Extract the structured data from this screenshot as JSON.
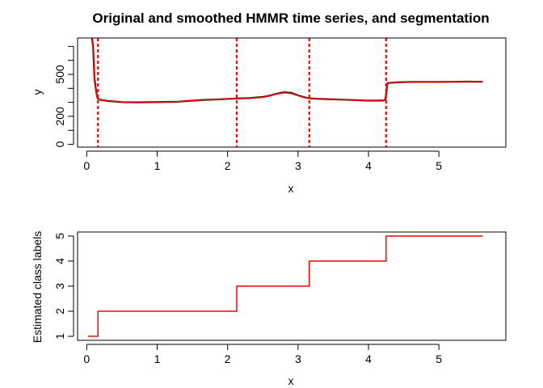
{
  "colors": {
    "original": "#000000",
    "smoothed": "#ff0000",
    "segment_lines": "#ff0000",
    "labels_line": "#ff0000"
  },
  "chart_data": [
    {
      "type": "line",
      "title": "Original and smoothed HMMR time series, and segmentation",
      "xlabel": "x",
      "ylabel": "y",
      "xlim": [
        -0.13,
        5.95
      ],
      "ylim": [
        -20,
        760
      ],
      "x_ticks": [
        0,
        1,
        2,
        3,
        4,
        5
      ],
      "y_ticks": [
        0,
        100,
        200,
        300,
        400,
        500,
        600,
        700
      ],
      "y_tick_labels": [
        "0",
        "",
        "200",
        "",
        "",
        "500",
        "",
        ""
      ],
      "grid": false,
      "segment_boundaries": [
        0.16,
        2.13,
        3.16,
        4.25
      ],
      "series": [
        {
          "role": "original",
          "color": "#000000",
          "x": [
            0.07,
            0.09,
            0.11,
            0.13,
            0.15,
            0.18,
            0.3,
            0.5,
            0.7,
            0.9,
            1.1,
            1.3,
            1.5,
            1.7,
            1.9,
            2.12,
            2.3,
            2.5,
            2.6,
            2.7,
            2.8,
            2.9,
            3.0,
            3.1,
            3.15,
            3.2,
            3.4,
            3.6,
            3.8,
            4.0,
            4.2,
            4.24,
            4.27,
            4.4,
            4.6,
            4.8,
            5.0,
            5.2,
            5.4,
            5.62
          ],
          "y": [
            780,
            700,
            470,
            390,
            335,
            320,
            310,
            302,
            300,
            301,
            303,
            305,
            312,
            318,
            322,
            328,
            330,
            338,
            348,
            362,
            372,
            368,
            350,
            335,
            330,
            327,
            323,
            320,
            316,
            312,
            313,
            318,
            438,
            443,
            446,
            446,
            446,
            447,
            448,
            447
          ]
        },
        {
          "role": "smoothed",
          "color": "#ff0000",
          "x": [
            0.07,
            0.09,
            0.11,
            0.13,
            0.15,
            0.18,
            0.3,
            0.5,
            0.7,
            0.9,
            1.1,
            1.3,
            1.5,
            1.7,
            1.9,
            2.12,
            2.3,
            2.5,
            2.6,
            2.7,
            2.8,
            2.9,
            3.0,
            3.1,
            3.15,
            3.2,
            3.4,
            3.6,
            3.8,
            4.0,
            4.2,
            4.24,
            4.27,
            4.4,
            4.6,
            4.8,
            5.0,
            5.2,
            5.4,
            5.62
          ],
          "y": [
            780,
            690,
            460,
            385,
            335,
            320,
            310,
            302,
            300,
            301,
            303,
            305,
            312,
            318,
            322,
            328,
            330,
            337,
            347,
            360,
            368,
            364,
            348,
            334,
            330,
            327,
            323,
            320,
            316,
            312,
            313,
            318,
            438,
            443,
            446,
            446,
            446,
            447,
            448,
            447
          ]
        }
      ]
    },
    {
      "type": "line",
      "title": "",
      "xlabel": "x",
      "ylabel": "Estimated class labels",
      "xlim": [
        -0.13,
        5.95
      ],
      "ylim": [
        0.84,
        5.16
      ],
      "x_ticks": [
        0,
        1,
        2,
        3,
        4,
        5
      ],
      "y_ticks": [
        1,
        2,
        3,
        4,
        5
      ],
      "grid": false,
      "series": [
        {
          "role": "labels",
          "color": "#ff0000",
          "x": [
            0.02,
            0.16,
            0.16,
            2.13,
            2.13,
            3.16,
            3.16,
            4.25,
            4.25,
            5.62
          ],
          "y": [
            1,
            1,
            2,
            2,
            3,
            3,
            4,
            4,
            5,
            5
          ]
        }
      ]
    }
  ]
}
